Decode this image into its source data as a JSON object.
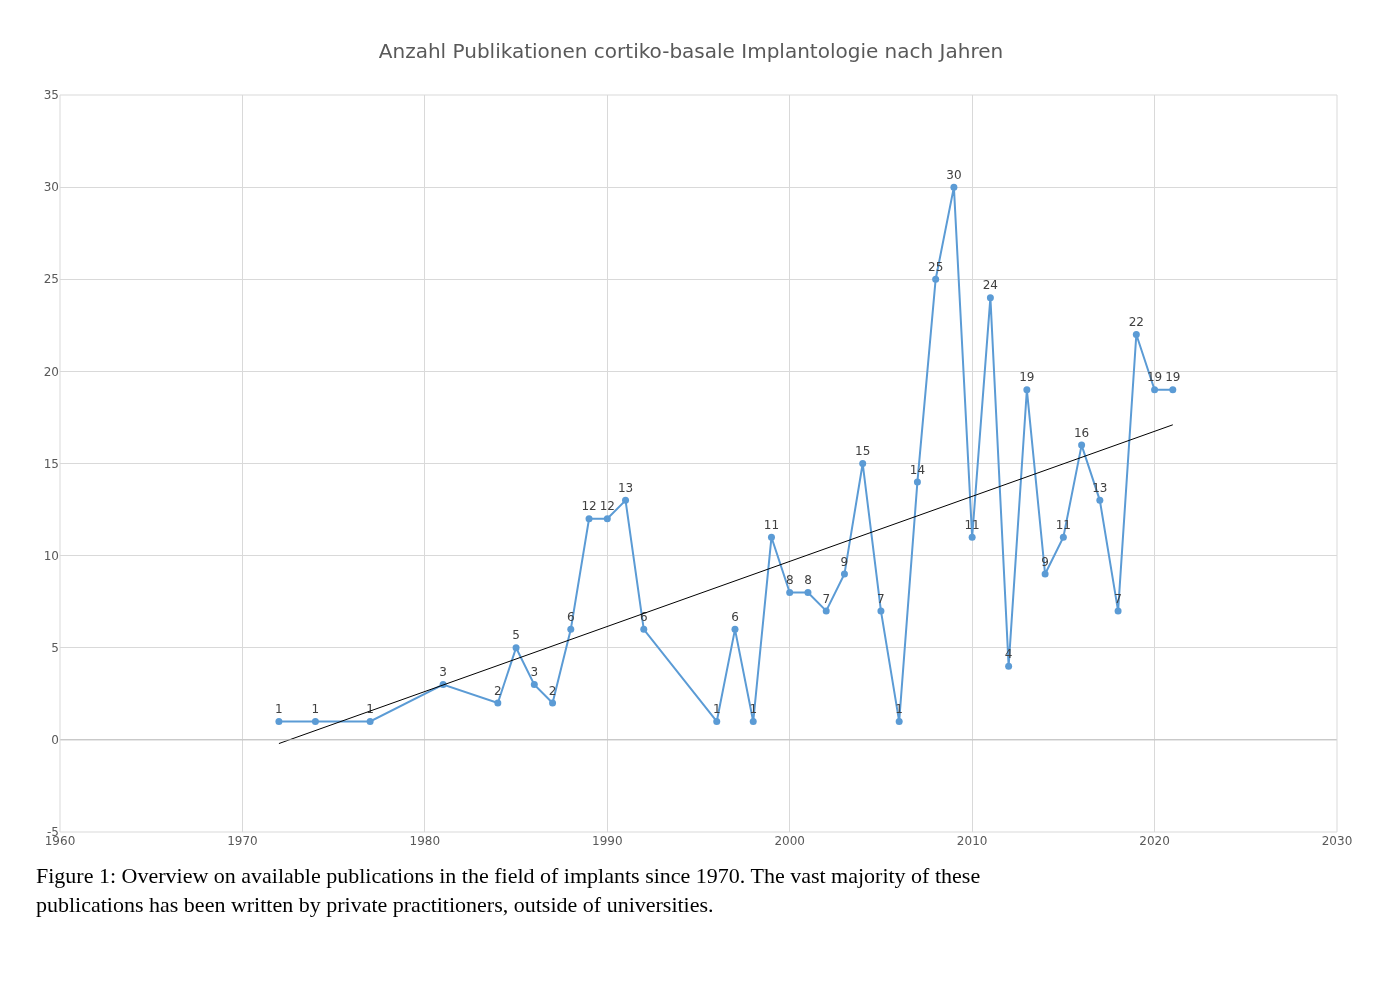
{
  "chart_data": {
    "type": "line",
    "title": "Anzahl Publikationen cortiko-basale Implantologie nach Jahren",
    "series": [
      {
        "color": "#5b9bd5",
        "marker": "circle",
        "x": [
          1972,
          1974,
          1977,
          1981,
          1984,
          1985,
          1986,
          1987,
          1988,
          1989,
          1990,
          1991,
          1992,
          1996,
          1997,
          1998,
          1999,
          2000,
          2001,
          2002,
          2003,
          2004,
          2005,
          2006,
          2007,
          2008,
          2009,
          2010,
          2011,
          2012,
          2013,
          2014,
          2015,
          2016,
          2017,
          2018,
          2019,
          2020,
          2021
        ],
        "values": [
          1,
          1,
          1,
          3,
          2,
          5,
          3,
          2,
          6,
          12,
          12,
          13,
          6,
          1,
          6,
          1,
          11,
          8,
          8,
          7,
          9,
          15,
          7,
          1,
          14,
          25,
          30,
          11,
          24,
          4,
          19,
          9,
          11,
          16,
          13,
          7,
          22,
          19,
          19
        ],
        "value_labels": [
          "1",
          "1",
          "1",
          "3",
          "2",
          "5",
          "3",
          "2",
          "6",
          "12",
          "12",
          "13",
          "6",
          "1",
          "6",
          "1",
          "11",
          "8",
          "8",
          "7",
          "9",
          "15",
          "7",
          "1",
          "14",
          "25",
          "30",
          "11",
          "24",
          "4",
          "19",
          "9",
          "11",
          "16",
          "13",
          "7",
          "22",
          "19",
          "19"
        ]
      },
      {
        "color": "#000000",
        "x": [
          1972,
          2021
        ],
        "values": [
          -0.2,
          17.1
        ]
      }
    ],
    "xlim": [
      1960,
      2030
    ],
    "xticks": [
      1960,
      1970,
      1980,
      1990,
      2000,
      2010,
      2020,
      2030
    ],
    "ylim": [
      -5,
      35
    ],
    "yticks": [
      -5,
      0,
      5,
      10,
      15,
      20,
      25,
      30,
      35
    ],
    "grid": true,
    "annotations": [
      "Figure 1: Overview on available publications in the field of implants since 1970. The vast majority of these publications has been written by private practitioners, outside of universities."
    ]
  }
}
